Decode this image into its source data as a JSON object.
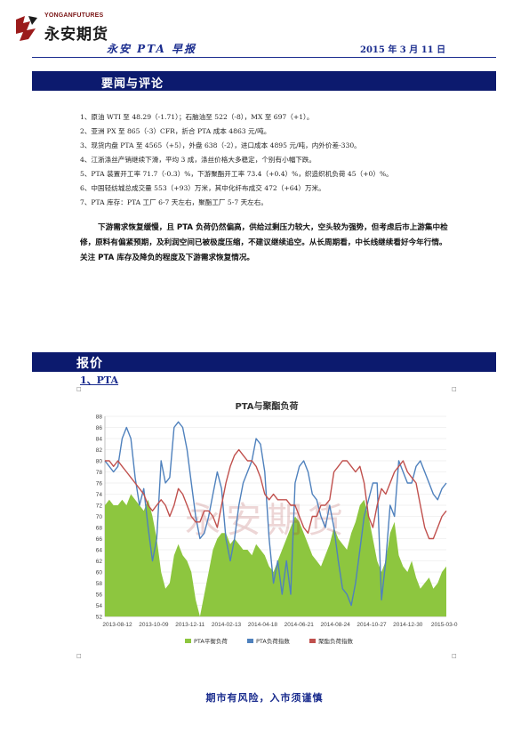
{
  "header": {
    "logo_en": "YONGANFUTURES",
    "logo_cn": "永安期货",
    "title": "永安 PTA 早报",
    "date": "2015 年 3 月 11 日",
    "brand_colors": {
      "navy": "#0c1a6e",
      "blue": "#1a2c8e",
      "red": "#9b1b1b"
    }
  },
  "sections": {
    "news_title": "要闻与评论",
    "quote_title": "报价",
    "pta_subtitle": "1、PTA"
  },
  "news": [
    "1、原油 WTI 至 48.29（-1.71）；石脑油至 522（-8），MX 至 697（+1）。",
    "2、亚洲 PX 至 865（-3）CFR，折合 PTA 成本 4863 元/吨。",
    "3、现货内盘 PTA 至 4565（+5），外盘 638（-2），进口成本 4895 元/吨，内外价差-330。",
    "4、江浙涤丝产销继续下滑，平均 3 成，涤丝价格大多稳定，个别有小幅下跌。",
    "5、PTA 装置开工率 71.7（-0.3）%，下游聚酯开工率 73.4（+0.4）%，织造织机负荷 45（+0）%。",
    "6、中国轻纺城总成交量 553（+93）万米，其中化纤布成交 472（+64）万米。",
    "7、PTA 库存：PTA 工厂 6-7 天左右，聚酯工厂 5-7 天左右。"
  ],
  "summary": "下游需求恢复缓慢，且 PTA 负荷仍然偏高，供给过剩压力较大，空头较为强势，但考虑后市上游集中检修，原料有偏紧预期，及利润空间已被极度压缩，不建议继续追空。从长周期看，中长线继续看好今年行情。关注 PTA 库存及降负的程度及下游需求恢复情况。",
  "chart_data": {
    "type": "line",
    "title": "PTA与聚酯负荷",
    "ylim": [
      52,
      88
    ],
    "yticks": [
      52,
      54,
      56,
      58,
      60,
      62,
      64,
      66,
      68,
      70,
      72,
      74,
      76,
      78,
      80,
      82,
      84,
      86,
      88
    ],
    "x_labels": [
      "2013-08-12",
      "2013-10-09",
      "2013-12-11",
      "2014-02-13",
      "2014-04-18",
      "2014-06-21",
      "2014-08-24",
      "2014-10-27",
      "2014-12-30",
      "2015-03-0"
    ],
    "watermark": "永安期货",
    "series": [
      {
        "name": "PTA平衡负荷",
        "kind": "area",
        "color": "#8dc63f",
        "values": [
          72,
          73,
          72,
          72,
          73,
          72,
          74,
          73,
          72,
          71,
          73,
          70,
          66,
          60,
          57,
          58,
          63,
          65,
          63,
          62,
          60,
          55,
          52,
          56,
          60,
          64,
          66,
          67,
          67,
          65,
          66,
          65,
          64,
          64,
          63,
          65,
          64,
          63,
          61,
          60,
          62,
          64,
          66,
          68,
          70,
          69,
          67,
          65,
          63,
          62,
          61,
          63,
          65,
          68,
          66,
          65,
          64,
          67,
          69,
          72,
          73,
          70,
          66,
          62,
          60,
          62,
          67,
          69,
          63,
          61,
          60,
          62,
          59,
          57,
          58,
          59,
          57,
          58,
          60,
          61
        ]
      },
      {
        "name": "PTA负荷指数",
        "kind": "line",
        "color": "#4f81bd",
        "values": [
          80,
          79,
          78,
          79,
          84,
          86,
          84,
          77,
          72,
          75,
          68,
          62,
          66,
          80,
          76,
          77,
          86,
          87,
          86,
          82,
          76,
          70,
          66,
          67,
          70,
          74,
          78,
          75,
          66,
          62,
          66,
          72,
          76,
          78,
          80,
          84,
          83,
          78,
          66,
          58,
          62,
          56,
          62,
          56,
          76,
          79,
          80,
          78,
          74,
          73,
          70,
          68,
          72,
          68,
          62,
          57,
          56,
          54,
          58,
          64,
          70,
          73,
          76,
          76,
          55,
          62,
          72,
          70,
          80,
          78,
          76,
          76,
          79,
          80,
          78,
          76,
          74,
          73,
          75,
          76
        ]
      },
      {
        "name": "聚酯负荷指数",
        "kind": "line",
        "color": "#c0504d",
        "values": [
          80,
          80,
          79,
          80,
          79,
          78,
          77,
          76,
          75,
          74,
          72,
          71,
          72,
          73,
          72,
          70,
          72,
          75,
          74,
          72,
          70,
          69,
          69,
          71,
          71,
          70,
          68,
          72,
          76,
          79,
          81,
          82,
          81,
          80,
          80,
          79,
          77,
          74,
          73,
          74,
          73,
          73,
          73,
          72,
          72,
          70,
          68,
          67,
          70,
          70,
          72,
          72,
          73,
          78,
          79,
          80,
          80,
          79,
          78,
          79,
          76,
          70,
          68,
          72,
          75,
          74,
          76,
          78,
          79,
          80,
          78,
          77,
          76,
          72,
          68,
          66,
          66,
          68,
          70,
          71
        ]
      }
    ]
  },
  "footer": "期市有风险，入市须谨慎",
  "corner_mark": "□"
}
